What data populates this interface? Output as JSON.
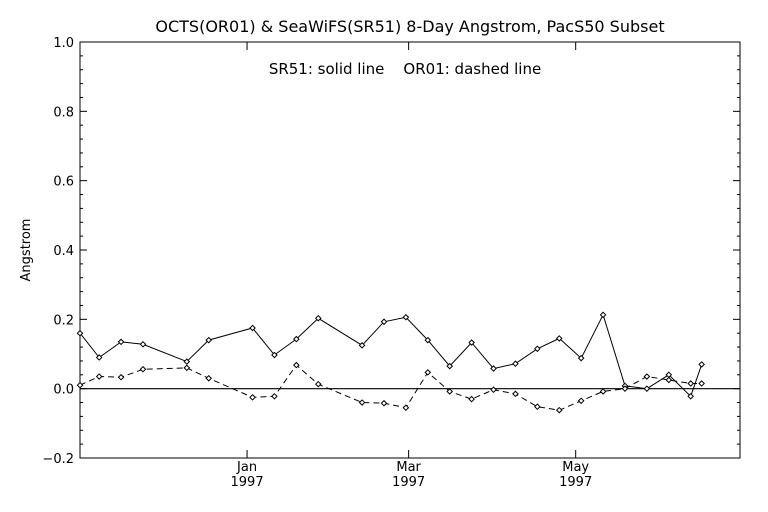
{
  "chart_data": {
    "type": "line",
    "title": "OCTS(OR01) & SeaWiFS(SR51) 8-Day Angstrom, PacS50 Subset",
    "annotation": "SR51: solid line    OR01: dashed line",
    "ylabel": "Angstrom",
    "xlabel": "",
    "ylim": [
      -0.2,
      1.0
    ],
    "xlim": [
      "1996-11-01",
      "1997-06-30"
    ],
    "yticks": [
      "−0.2",
      "0.0",
      "0.2",
      "0.4",
      "0.6",
      "0.8",
      "1.0"
    ],
    "xticks": [
      {
        "month": "Jan",
        "year": "1997",
        "date": "1997-01-01"
      },
      {
        "month": "Mar",
        "year": "1997",
        "date": "1997-03-01"
      },
      {
        "month": "May",
        "year": "1997",
        "date": "1997-05-01"
      }
    ],
    "zero_line": true,
    "grid": false,
    "series": [
      {
        "name": "SR51",
        "style": "solid",
        "color": "#000000",
        "points": [
          {
            "x": "1996-11-01",
            "y": 0.16
          },
          {
            "x": "1996-11-08",
            "y": 0.09
          },
          {
            "x": "1996-11-16",
            "y": 0.135
          },
          {
            "x": "1996-11-24",
            "y": 0.128
          },
          {
            "x": "1996-12-10",
            "y": 0.078
          },
          {
            "x": "1996-12-18",
            "y": 0.14
          },
          {
            "x": "1997-01-03",
            "y": 0.175
          },
          {
            "x": "1997-01-11",
            "y": 0.097
          },
          {
            "x": "1997-01-19",
            "y": 0.143
          },
          {
            "x": "1997-01-27",
            "y": 0.203
          },
          {
            "x": "1997-02-12",
            "y": 0.125
          },
          {
            "x": "1997-02-20",
            "y": 0.193
          },
          {
            "x": "1997-02-28",
            "y": 0.206
          },
          {
            "x": "1997-03-08",
            "y": 0.14
          },
          {
            "x": "1997-03-16",
            "y": 0.065
          },
          {
            "x": "1997-03-24",
            "y": 0.133
          },
          {
            "x": "1997-04-01",
            "y": 0.058
          },
          {
            "x": "1997-04-09",
            "y": 0.072
          },
          {
            "x": "1997-04-17",
            "y": 0.115
          },
          {
            "x": "1997-04-25",
            "y": 0.145
          },
          {
            "x": "1997-05-03",
            "y": 0.088
          },
          {
            "x": "1997-05-11",
            "y": 0.213
          },
          {
            "x": "1997-05-19",
            "y": 0.008
          },
          {
            "x": "1997-05-27",
            "y": 0.0
          },
          {
            "x": "1997-06-04",
            "y": 0.04
          },
          {
            "x": "1997-06-12",
            "y": -0.022
          },
          {
            "x": "1997-06-16",
            "y": 0.07
          }
        ]
      },
      {
        "name": "OR01",
        "style": "dashed",
        "color": "#000000",
        "points": [
          {
            "x": "1996-11-01",
            "y": 0.01
          },
          {
            "x": "1996-11-08",
            "y": 0.035
          },
          {
            "x": "1996-11-16",
            "y": 0.033
          },
          {
            "x": "1996-11-24",
            "y": 0.056
          },
          {
            "x": "1996-12-10",
            "y": 0.06
          },
          {
            "x": "1996-12-18",
            "y": 0.03
          },
          {
            "x": "1997-01-03",
            "y": -0.025
          },
          {
            "x": "1997-01-11",
            "y": -0.022
          },
          {
            "x": "1997-01-19",
            "y": 0.068
          },
          {
            "x": "1997-01-27",
            "y": 0.013
          },
          {
            "x": "1997-02-12",
            "y": -0.04
          },
          {
            "x": "1997-02-20",
            "y": -0.042
          },
          {
            "x": "1997-02-28",
            "y": -0.055
          },
          {
            "x": "1997-03-08",
            "y": 0.047
          },
          {
            "x": "1997-03-16",
            "y": -0.008
          },
          {
            "x": "1997-03-24",
            "y": -0.03
          },
          {
            "x": "1997-04-01",
            "y": -0.003
          },
          {
            "x": "1997-04-09",
            "y": -0.015
          },
          {
            "x": "1997-04-17",
            "y": -0.052
          },
          {
            "x": "1997-04-25",
            "y": -0.062
          },
          {
            "x": "1997-05-03",
            "y": -0.035
          },
          {
            "x": "1997-05-11",
            "y": -0.008
          },
          {
            "x": "1997-05-19",
            "y": 0.0
          },
          {
            "x": "1997-05-27",
            "y": 0.035
          },
          {
            "x": "1997-06-04",
            "y": 0.025
          },
          {
            "x": "1997-06-12",
            "y": 0.015
          },
          {
            "x": "1997-06-16",
            "y": 0.015
          }
        ]
      }
    ]
  }
}
